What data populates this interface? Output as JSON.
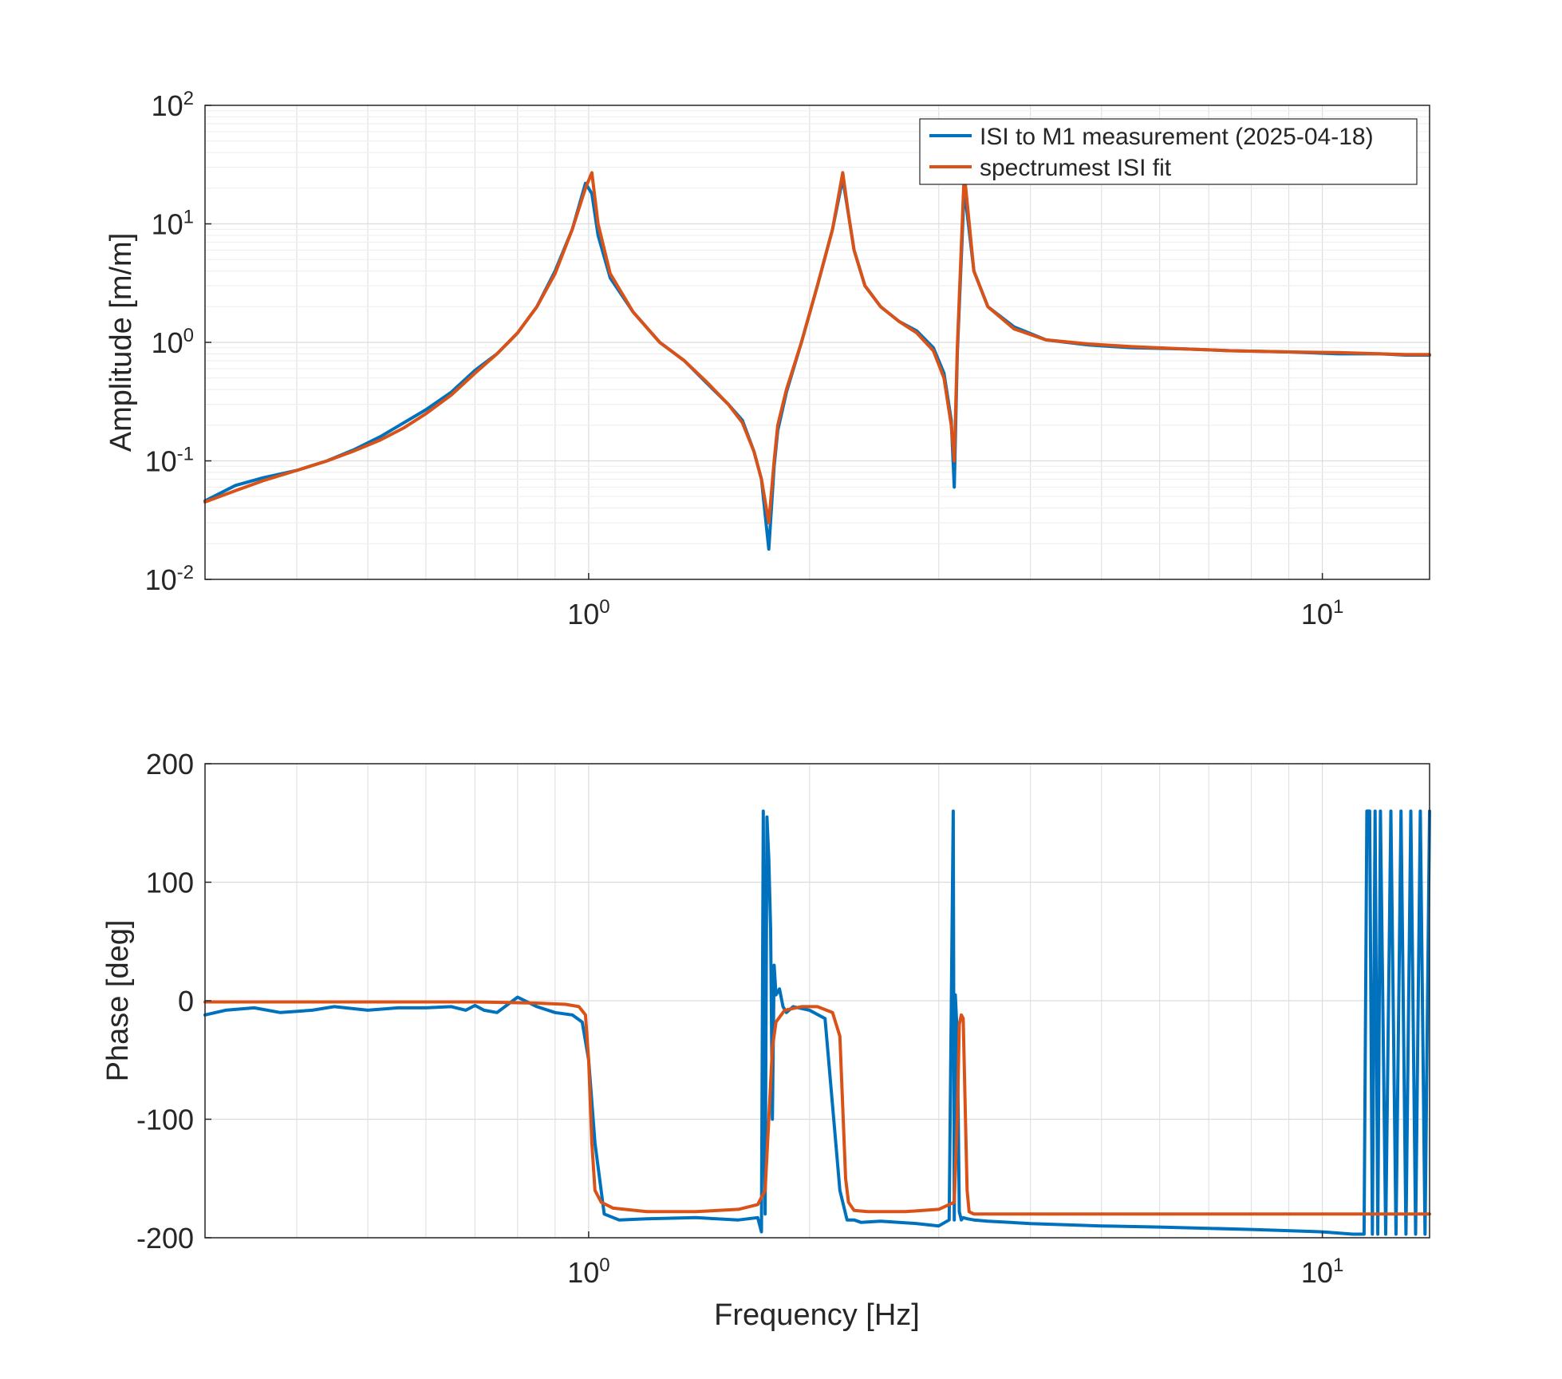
{
  "colors": {
    "measurement": "#0072BD",
    "fit": "#D95319",
    "grid_major": "#dcdcdc",
    "grid_minor": "#efefef",
    "axes": "#262626"
  },
  "x_ticks": [
    {
      "base": "10",
      "exp": "0",
      "value": 1
    },
    {
      "base": "10",
      "exp": "1",
      "value": 10
    }
  ],
  "chart_data": [
    {
      "type": "line",
      "panel": "amplitude",
      "xlabel": "Frequency [Hz]",
      "ylabel": "Amplitude [m/m]",
      "xscale": "log",
      "yscale": "log",
      "xlim": [
        0.3,
        14
      ],
      "ylim": [
        0.01,
        100
      ],
      "grid": true,
      "legend_placement": "top-right",
      "y_ticks": [
        {
          "base": "10",
          "exp": "-2",
          "value": 0.01
        },
        {
          "base": "10",
          "exp": "-1",
          "value": 0.1
        },
        {
          "base": "10",
          "exp": "0",
          "value": 1
        },
        {
          "base": "10",
          "exp": "1",
          "value": 10
        },
        {
          "base": "10",
          "exp": "2",
          "value": 100
        }
      ],
      "series": [
        {
          "name": "ISI to M1 measurement (2025-04-18)",
          "x": [
            0.3,
            0.33,
            0.36,
            0.4,
            0.44,
            0.48,
            0.52,
            0.56,
            0.6,
            0.65,
            0.7,
            0.75,
            0.8,
            0.85,
            0.9,
            0.95,
            0.99,
            1.01,
            1.03,
            1.07,
            1.15,
            1.25,
            1.35,
            1.45,
            1.55,
            1.62,
            1.68,
            1.72,
            1.76,
            1.79,
            1.81,
            1.86,
            1.95,
            2.05,
            2.15,
            2.22,
            2.26,
            2.3,
            2.38,
            2.5,
            2.65,
            2.8,
            2.95,
            3.05,
            3.12,
            3.15,
            3.18,
            3.25,
            3.35,
            3.5,
            3.8,
            4.2,
            4.8,
            5.5,
            6.5,
            7.5,
            9.0,
            10.5,
            12.0,
            13.0,
            14.0
          ],
          "y": [
            0.046,
            0.062,
            0.072,
            0.083,
            0.1,
            0.125,
            0.16,
            0.21,
            0.27,
            0.38,
            0.58,
            0.8,
            1.2,
            2.0,
            4.0,
            9.0,
            22.0,
            18.0,
            8.0,
            3.5,
            1.8,
            1.0,
            0.7,
            0.45,
            0.3,
            0.22,
            0.12,
            0.07,
            0.018,
            0.09,
            0.18,
            0.38,
            1.0,
            3.0,
            9.0,
            24.0,
            12.0,
            6.0,
            3.0,
            2.0,
            1.5,
            1.25,
            0.9,
            0.55,
            0.22,
            0.06,
            0.8,
            20.0,
            4.0,
            2.0,
            1.35,
            1.05,
            0.95,
            0.9,
            0.88,
            0.85,
            0.83,
            0.8,
            0.8,
            0.78,
            0.78
          ]
        },
        {
          "name": "spectrumest ISI fit",
          "x": [
            0.3,
            0.33,
            0.36,
            0.4,
            0.44,
            0.48,
            0.52,
            0.56,
            0.6,
            0.65,
            0.7,
            0.75,
            0.8,
            0.85,
            0.9,
            0.95,
            0.99,
            1.01,
            1.03,
            1.07,
            1.15,
            1.25,
            1.35,
            1.45,
            1.55,
            1.62,
            1.68,
            1.72,
            1.76,
            1.79,
            1.81,
            1.86,
            1.95,
            2.05,
            2.15,
            2.22,
            2.26,
            2.3,
            2.38,
            2.5,
            2.65,
            2.8,
            2.95,
            3.05,
            3.12,
            3.15,
            3.18,
            3.25,
            3.35,
            3.5,
            3.8,
            4.2,
            4.8,
            5.5,
            6.5,
            7.5,
            9.0,
            10.5,
            12.0,
            13.0,
            14.0
          ],
          "y": [
            0.045,
            0.056,
            0.068,
            0.083,
            0.1,
            0.122,
            0.15,
            0.19,
            0.25,
            0.36,
            0.55,
            0.8,
            1.2,
            2.0,
            3.8,
            9.0,
            20.0,
            27.0,
            10.0,
            3.8,
            1.8,
            1.0,
            0.7,
            0.46,
            0.3,
            0.21,
            0.12,
            0.07,
            0.03,
            0.1,
            0.2,
            0.4,
            1.0,
            3.0,
            9.0,
            27.0,
            12.0,
            6.0,
            3.0,
            2.0,
            1.5,
            1.2,
            0.85,
            0.5,
            0.2,
            0.1,
            0.9,
            27.0,
            4.0,
            2.0,
            1.3,
            1.05,
            0.97,
            0.92,
            0.88,
            0.85,
            0.83,
            0.82,
            0.8,
            0.79,
            0.79
          ]
        }
      ]
    },
    {
      "type": "line",
      "panel": "phase",
      "xlabel": "Frequency [Hz]",
      "ylabel": "Phase [deg]",
      "xscale": "log",
      "yscale": "linear",
      "xlim": [
        0.3,
        14
      ],
      "ylim": [
        -200,
        200
      ],
      "grid": true,
      "y_ticks": [
        {
          "label": "200",
          "value": 200
        },
        {
          "label": "100",
          "value": 100
        },
        {
          "label": "0",
          "value": 0
        },
        {
          "label": "-100",
          "value": -100
        },
        {
          "label": "-200",
          "value": -200
        }
      ],
      "series": [
        {
          "name": "ISI to M1 measurement (2025-04-18)",
          "x": [
            0.3,
            0.32,
            0.35,
            0.38,
            0.42,
            0.45,
            0.5,
            0.55,
            0.6,
            0.65,
            0.68,
            0.7,
            0.72,
            0.75,
            0.8,
            0.85,
            0.9,
            0.95,
            0.98,
            1.0,
            1.02,
            1.05,
            1.1,
            1.2,
            1.4,
            1.6,
            1.7,
            1.72,
            1.73,
            1.74,
            1.75,
            1.76,
            1.77,
            1.78,
            1.79,
            1.8,
            1.82,
            1.84,
            1.86,
            1.9,
            2.0,
            2.1,
            2.2,
            2.25,
            2.28,
            2.3,
            2.35,
            2.5,
            2.8,
            3.0,
            3.1,
            3.14,
            3.15,
            3.16,
            3.18,
            3.2,
            3.22,
            3.24,
            3.28,
            3.35,
            3.5,
            4.0,
            5.0,
            6.0,
            8.0,
            10.0,
            11.0,
            11.4,
            11.5,
            11.6,
            11.7,
            11.8,
            11.9,
            12.0,
            12.2,
            12.4,
            12.6,
            12.8,
            13.0,
            13.2,
            13.4,
            13.6,
            13.8,
            14.0
          ],
          "y": [
            -12,
            -8,
            -6,
            -10,
            -8,
            -5,
            -8,
            -6,
            -6,
            -5,
            -8,
            -4,
            -8,
            -10,
            3,
            -5,
            -10,
            -12,
            -18,
            -50,
            -120,
            -180,
            -185,
            -184,
            -183,
            -185,
            -183,
            -195,
            160,
            -180,
            155,
            120,
            60,
            -100,
            30,
            5,
            10,
            -5,
            -10,
            -5,
            -8,
            -15,
            -160,
            -185,
            -185,
            -185,
            -187,
            -186,
            -188,
            -190,
            -185,
            160,
            -185,
            5,
            -30,
            -178,
            -185,
            -183,
            -184,
            -185,
            -186,
            -188,
            -190,
            -191,
            -193,
            -195,
            -197,
            -197,
            160,
            160,
            -197,
            160,
            -197,
            160,
            -197,
            160,
            -197,
            160,
            -197,
            160,
            -197,
            160,
            -197,
            160
          ]
        },
        {
          "name": "spectrumest ISI fit",
          "x": [
            0.3,
            0.5,
            0.7,
            0.85,
            0.93,
            0.97,
            0.99,
            1.0,
            1.01,
            1.02,
            1.04,
            1.08,
            1.2,
            1.4,
            1.6,
            1.7,
            1.74,
            1.76,
            1.78,
            1.8,
            1.85,
            1.95,
            2.05,
            2.15,
            2.2,
            2.22,
            2.24,
            2.26,
            2.3,
            2.4,
            2.7,
            3.0,
            3.15,
            3.18,
            3.2,
            3.22,
            3.24,
            3.26,
            3.28,
            3.3,
            3.35,
            3.5,
            5.0,
            8.0,
            11.0,
            14.0
          ],
          "y": [
            -1,
            -1,
            -1,
            -2,
            -3,
            -5,
            -12,
            -50,
            -120,
            -160,
            -170,
            -175,
            -178,
            -178,
            -176,
            -172,
            -160,
            -100,
            -40,
            -18,
            -8,
            -5,
            -5,
            -10,
            -30,
            -90,
            -150,
            -170,
            -177,
            -178,
            -178,
            -176,
            -170,
            -100,
            -20,
            -12,
            -15,
            -90,
            -160,
            -178,
            -180,
            -180,
            -180,
            -180,
            -180,
            -180
          ]
        }
      ]
    }
  ]
}
